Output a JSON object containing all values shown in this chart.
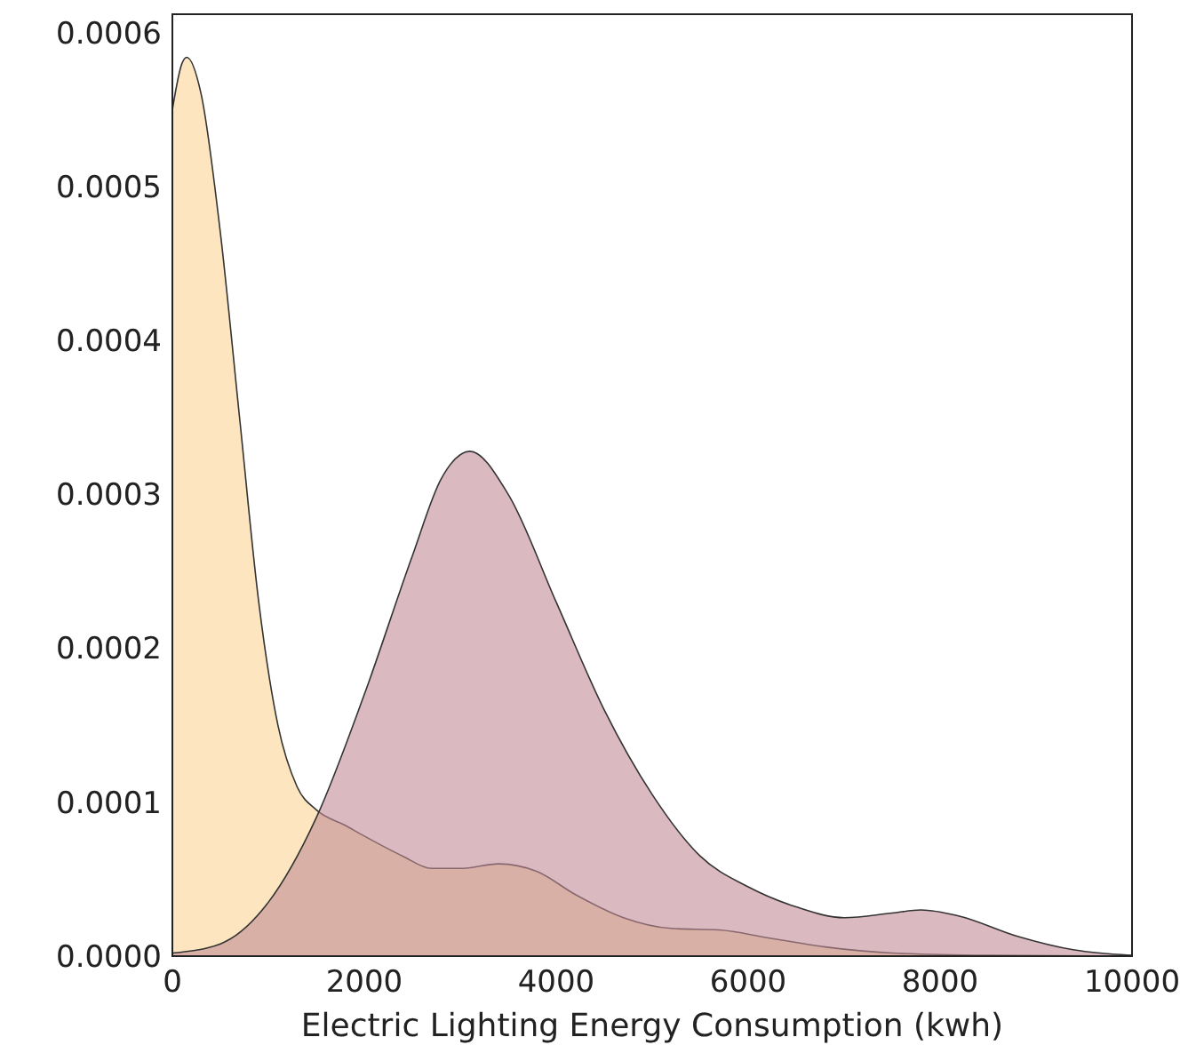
{
  "chart_data": {
    "type": "area",
    "xlabel": "Electric Lighting Energy Consumption (kwh)",
    "xlim": [
      0,
      10000
    ],
    "ylim": [
      0,
      0.000612
    ],
    "xticks": [
      0,
      2000,
      4000,
      6000,
      8000,
      10000
    ],
    "yticks": [
      {
        "value": 0,
        "label": "0.0000"
      },
      {
        "value": 0.0001,
        "label": "0.0001"
      },
      {
        "value": 0.0002,
        "label": "0.0002"
      },
      {
        "value": 0.0003,
        "label": "0.0003"
      },
      {
        "value": 0.0004,
        "label": "0.0004"
      },
      {
        "value": 0.0005,
        "label": "0.0005"
      },
      {
        "value": 0.0006,
        "label": "0.0006"
      }
    ],
    "grid": false,
    "series": [
      {
        "color": "#fcd595",
        "x": [
          0,
          100,
          150,
          300,
          500,
          700,
          900,
          1100,
          1300,
          1500,
          1800,
          2000,
          2400,
          2700,
          3000,
          3400,
          3800,
          4200,
          4700,
          5200,
          5700,
          6200,
          6800,
          7500,
          8500,
          10000
        ],
        "values": [
          0.00055,
          0.00058,
          0.000584,
          0.00056,
          0.00047,
          0.00035,
          0.00023,
          0.00015,
          0.00011,
          9.5e-05,
          8.5e-05,
          7.8e-05,
          6.5e-05,
          5.7e-05,
          5.7e-05,
          6e-05,
          5.5e-05,
          4e-05,
          2.5e-05,
          1.8e-05,
          1.7e-05,
          1.2e-05,
          6e-06,
          2e-06,
          5e-07,
          0
        ]
      },
      {
        "color": "#c28c96",
        "x": [
          0,
          500,
          1000,
          1500,
          2000,
          2500,
          2800,
          3100,
          3500,
          4000,
          4500,
          5000,
          5500,
          6000,
          6500,
          7000,
          7500,
          7800,
          8200,
          8800,
          9400,
          10000
        ],
        "values": [
          2e-06,
          8e-06,
          3.5e-05,
          9e-05,
          0.00017,
          0.00026,
          0.00031,
          0.000328,
          0.0003,
          0.00023,
          0.00016,
          0.000105,
          6.5e-05,
          4.5e-05,
          3.2e-05,
          2.5e-05,
          2.8e-05,
          3e-05,
          2.6e-05,
          1.3e-05,
          4e-06,
          5e-07
        ]
      }
    ]
  }
}
